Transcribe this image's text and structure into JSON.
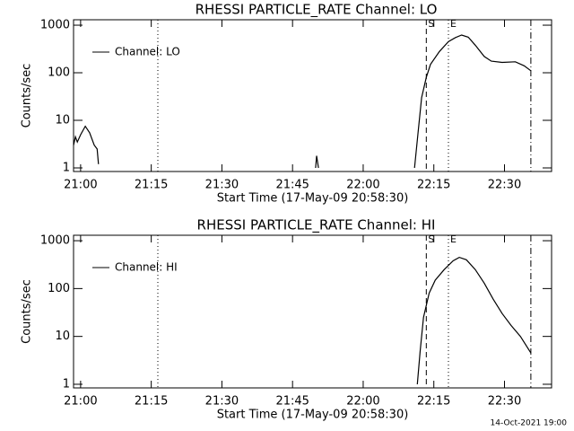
{
  "chart_data": [
    {
      "type": "line",
      "title": "RHESSI PARTICLE_RATE Channel: LO",
      "xlabel": "Start Time (17-May-09 20:58:30)",
      "ylabel": "Counts/sec",
      "x": [
        1258.5,
        1258.9,
        1259.3,
        1260.0,
        1261.0,
        1261.9,
        1262.9,
        1263.5,
        1263.8,
        1264.4,
        1309.9,
        1310.1,
        1310.5,
        1311.0,
        1330.9,
        1331.6,
        1332.4,
        1333.4,
        1334.3,
        1336.2,
        1338.1,
        1339.6,
        1340.9,
        1342.3,
        1343.8,
        1345.7,
        1347.2,
        1349.5,
        1352.3,
        1354.2,
        1355.6
      ],
      "series": [
        {
          "name": "Channel: LO",
          "color": "#000000",
          "values": [
            3,
            4.5,
            3.5,
            5,
            7.5,
            5.5,
            3,
            2.5,
            1.2,
            null,
            1,
            1.8,
            1,
            null,
            1,
            5,
            30,
            80,
            150,
            280,
            450,
            550,
            620,
            560,
            380,
            220,
            175,
            165,
            170,
            140,
            110
          ]
        }
      ],
      "xlim": [
        1258.5,
        1360
      ],
      "ylim": [
        0.84,
        1300
      ],
      "log_y": true,
      "xticks": [
        {
          "value": 1260,
          "label": "21:00"
        },
        {
          "value": 1275,
          "label": "21:15"
        },
        {
          "value": 1290,
          "label": "21:30"
        },
        {
          "value": 1305,
          "label": "21:45"
        },
        {
          "value": 1320,
          "label": "22:00"
        },
        {
          "value": 1335,
          "label": "22:15"
        },
        {
          "value": 1350,
          "label": "22:30"
        }
      ],
      "yticks": [
        1,
        10,
        100,
        1000
      ],
      "markers": [
        {
          "x": 1276.4,
          "style": "dotted"
        },
        {
          "x": 1333.4,
          "style": "dashed",
          "label": "S"
        },
        {
          "x": 1338.1,
          "style": "dotted",
          "label": "E"
        },
        {
          "x": 1355.6,
          "style": "dashdot"
        }
      ],
      "legend": "upper left"
    },
    {
      "type": "line",
      "title": "RHESSI PARTICLE_RATE Channel: HI",
      "xlabel": "Start Time (17-May-09 20:58:30)",
      "ylabel": "Counts/sec",
      "x": [
        1331.5,
        1332.1,
        1332.8,
        1334.0,
        1335.3,
        1337.2,
        1339.1,
        1340.4,
        1341.9,
        1343.8,
        1345.7,
        1347.6,
        1349.5,
        1351.4,
        1353.4,
        1355.6
      ],
      "series": [
        {
          "name": "Channel: HI",
          "color": "#000000",
          "values": [
            1,
            5,
            25,
            80,
            150,
            250,
            380,
            450,
            400,
            250,
            130,
            60,
            30,
            17,
            10,
            4.5
          ]
        }
      ],
      "xlim": [
        1258.5,
        1360
      ],
      "ylim": [
        0.84,
        1300
      ],
      "log_y": true,
      "xticks": [
        {
          "value": 1260,
          "label": "21:00"
        },
        {
          "value": 1275,
          "label": "21:15"
        },
        {
          "value": 1290,
          "label": "21:30"
        },
        {
          "value": 1305,
          "label": "21:45"
        },
        {
          "value": 1320,
          "label": "22:00"
        },
        {
          "value": 1335,
          "label": "22:15"
        },
        {
          "value": 1350,
          "label": "22:30"
        }
      ],
      "yticks": [
        1,
        10,
        100,
        1000
      ],
      "markers": [
        {
          "x": 1276.4,
          "style": "dotted"
        },
        {
          "x": 1333.4,
          "style": "dashed",
          "label": "S"
        },
        {
          "x": 1338.1,
          "style": "dotted",
          "label": "E"
        },
        {
          "x": 1355.6,
          "style": "dashdot"
        }
      ],
      "legend": "upper left"
    }
  ],
  "footer": "14-Oct-2021 19:00"
}
